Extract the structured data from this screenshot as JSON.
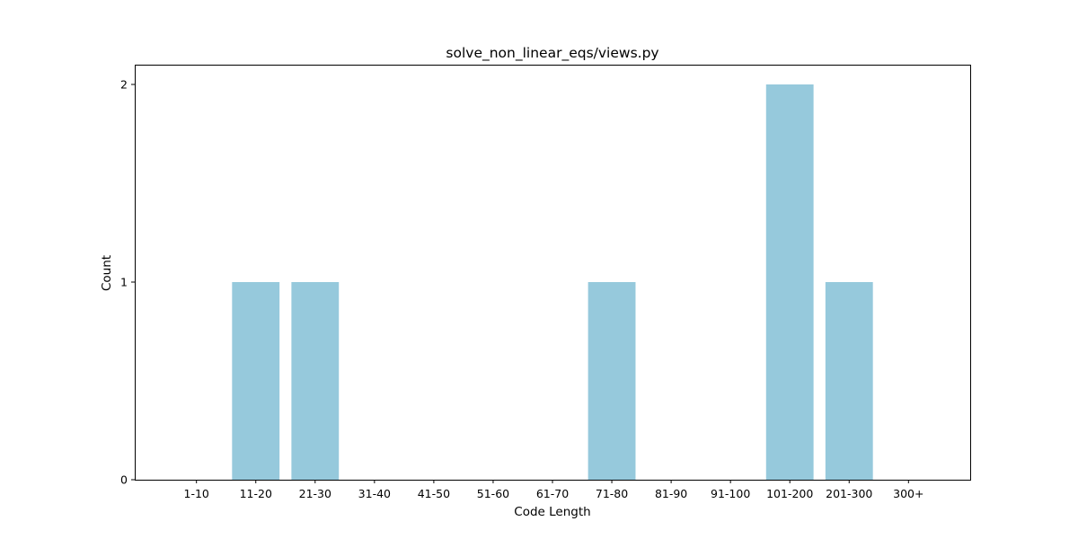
{
  "chart_data": {
    "type": "bar",
    "title": "solve_non_linear_eqs/views.py",
    "xlabel": "Code Length",
    "ylabel": "Count",
    "categories": [
      "1-10",
      "11-20",
      "21-30",
      "31-40",
      "41-50",
      "51-60",
      "61-70",
      "71-80",
      "81-90",
      "91-100",
      "101-200",
      "201-300",
      "300+"
    ],
    "values": [
      0,
      1,
      1,
      0,
      0,
      0,
      0,
      1,
      0,
      0,
      2,
      1,
      0
    ],
    "ylim": [
      0,
      2.1
    ],
    "yticks": [
      0,
      1,
      2
    ],
    "bar_color": "#96c9dc",
    "grid": false,
    "legend": "none"
  }
}
